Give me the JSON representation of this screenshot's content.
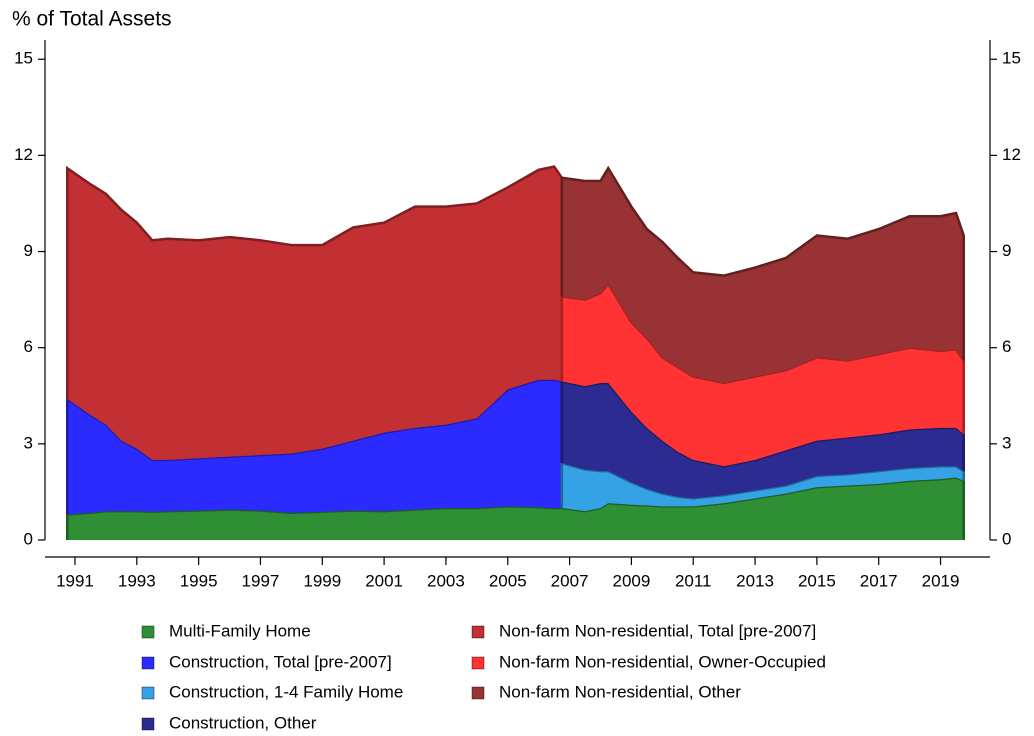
{
  "chart_data": {
    "type": "stacked-area",
    "y_label": "% of Total Assets",
    "x": [
      1990.75,
      1991.5,
      1992,
      1992.5,
      1993,
      1993.5,
      1994,
      1995,
      1996,
      1997,
      1998,
      1999,
      2000,
      2001,
      2002,
      2003,
      2004,
      2005,
      2006,
      2006.5,
      2006.75,
      2006.75,
      2007.5,
      2008,
      2008.25,
      2009,
      2009.5,
      2010,
      2010.5,
      2011,
      2012,
      2013,
      2014,
      2015,
      2016,
      2017,
      2018,
      2019,
      2019.5,
      2019.75
    ],
    "series": [
      {
        "name": "Multi-Family Home",
        "color": "#2e8f34",
        "values": [
          0.8,
          0.85,
          0.9,
          0.9,
          0.9,
          0.88,
          0.9,
          0.92,
          0.95,
          0.92,
          0.85,
          0.88,
          0.92,
          0.9,
          0.95,
          1.0,
          1.0,
          1.05,
          1.02,
          1.0,
          1.0,
          1.0,
          0.9,
          1.0,
          1.15,
          1.1,
          1.08,
          1.05,
          1.05,
          1.05,
          1.15,
          1.3,
          1.45,
          1.65,
          1.7,
          1.75,
          1.85,
          1.9,
          1.95,
          1.85
        ]
      },
      {
        "name": "Construction, Total [pre-2007]",
        "color": "#2b2bff",
        "values": [
          3.6,
          3.05,
          2.7,
          2.2,
          1.95,
          1.62,
          1.6,
          1.63,
          1.65,
          1.73,
          1.85,
          1.97,
          2.18,
          2.45,
          2.55,
          2.6,
          2.8,
          3.65,
          3.98,
          4.0,
          3.95,
          null,
          null,
          null,
          null,
          null,
          null,
          null,
          null,
          null,
          null,
          null,
          null,
          null,
          null,
          null,
          null,
          null,
          null,
          null
        ]
      },
      {
        "name": "Non-farm Non-residential, Total [pre-2007]",
        "color": "#c33033",
        "values": [
          7.2,
          7.2,
          7.2,
          7.2,
          7.05,
          6.85,
          6.9,
          6.8,
          6.85,
          6.7,
          6.5,
          6.35,
          6.65,
          6.55,
          6.9,
          6.8,
          6.7,
          6.3,
          6.55,
          6.65,
          6.35,
          null,
          null,
          null,
          null,
          null,
          null,
          null,
          null,
          null,
          null,
          null,
          null,
          null,
          null,
          null,
          null,
          null,
          null,
          null
        ]
      },
      {
        "name": "Construction, 1-4 Family Home",
        "color": "#35a2e6",
        "values": [
          null,
          null,
          null,
          null,
          null,
          null,
          null,
          null,
          null,
          null,
          null,
          null,
          null,
          null,
          null,
          null,
          null,
          null,
          null,
          null,
          null,
          1.4,
          1.3,
          1.15,
          1.0,
          0.7,
          0.52,
          0.4,
          0.3,
          0.25,
          0.25,
          0.25,
          0.25,
          0.35,
          0.35,
          0.4,
          0.4,
          0.4,
          0.35,
          0.3
        ]
      },
      {
        "name": "Construction, Other",
        "color": "#2b2b92",
        "values": [
          null,
          null,
          null,
          null,
          null,
          null,
          null,
          null,
          null,
          null,
          null,
          null,
          null,
          null,
          null,
          null,
          null,
          null,
          null,
          null,
          null,
          2.55,
          2.6,
          2.75,
          2.75,
          2.2,
          1.9,
          1.65,
          1.4,
          1.2,
          0.9,
          0.95,
          1.1,
          1.1,
          1.15,
          1.15,
          1.2,
          1.2,
          1.2,
          1.15
        ]
      },
      {
        "name": "Non-farm Non-residential, Owner-Occupied",
        "color": "#ff3333",
        "values": [
          null,
          null,
          null,
          null,
          null,
          null,
          null,
          null,
          null,
          null,
          null,
          null,
          null,
          null,
          null,
          null,
          null,
          null,
          null,
          null,
          null,
          2.65,
          2.7,
          2.8,
          3.1,
          2.8,
          2.8,
          2.6,
          2.65,
          2.6,
          2.6,
          2.6,
          2.5,
          2.6,
          2.4,
          2.5,
          2.55,
          2.4,
          2.45,
          2.3
        ]
      },
      {
        "name": "Non-farm Non-residential, Other",
        "color": "#993234",
        "values": [
          null,
          null,
          null,
          null,
          null,
          null,
          null,
          null,
          null,
          null,
          null,
          null,
          null,
          null,
          null,
          null,
          null,
          null,
          null,
          null,
          null,
          3.7,
          3.7,
          3.5,
          3.6,
          3.6,
          3.4,
          3.6,
          3.4,
          3.25,
          3.35,
          3.4,
          3.5,
          3.8,
          3.8,
          3.9,
          4.1,
          4.2,
          4.25,
          3.9
        ]
      }
    ],
    "xlim": [
      1990.03,
      2020.6
    ],
    "xticks": [
      1991,
      1993,
      1995,
      1997,
      1999,
      2001,
      2003,
      2005,
      2007,
      2009,
      2011,
      2013,
      2015,
      2017,
      2019
    ],
    "ylim": [
      0,
      15.6
    ],
    "yticks": [
      0,
      3,
      6,
      9,
      12,
      15
    ],
    "y2lim": [
      0,
      15.6
    ],
    "y2ticks": [
      0,
      3,
      6,
      9,
      12,
      15
    ],
    "grid": false
  }
}
